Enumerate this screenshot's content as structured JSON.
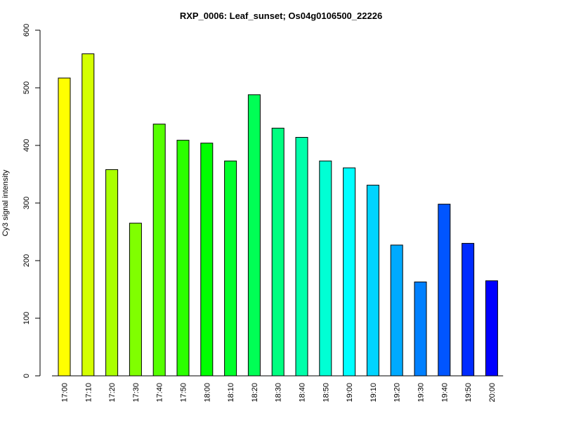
{
  "chart_data": {
    "type": "bar",
    "title": "RXP_0006: Leaf_sunset; Os04g0106500_22226",
    "xlabel": "",
    "ylabel": "Cy3 signal intensity",
    "ylim": [
      0,
      600
    ],
    "yticks": [
      0,
      100,
      200,
      300,
      400,
      500,
      600
    ],
    "categories": [
      "17:00",
      "17:10",
      "17:20",
      "17:30",
      "17:40",
      "17:50",
      "18:00",
      "18:10",
      "18:20",
      "18:30",
      "18:40",
      "18:50",
      "19:00",
      "19:10",
      "19:20",
      "19:30",
      "19:40",
      "19:50",
      "20:00"
    ],
    "values": [
      517,
      559,
      358,
      265,
      437,
      409,
      404,
      373,
      488,
      430,
      414,
      373,
      361,
      331,
      227,
      163,
      298,
      230,
      165
    ],
    "colors": [
      "#FFFF00",
      "#D4FF00",
      "#AAFF00",
      "#80FF00",
      "#55FF00",
      "#2BFF00",
      "#00FF00",
      "#00FF2B",
      "#00FF55",
      "#00FF80",
      "#00FFAA",
      "#00FFD4",
      "#00FFFF",
      "#00D4FF",
      "#00AAFF",
      "#0080FF",
      "#0055FF",
      "#002BFF",
      "#0000FF"
    ],
    "grid": false,
    "legend": "none"
  }
}
